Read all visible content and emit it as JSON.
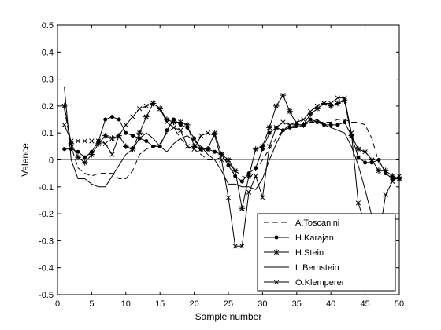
{
  "chart_data": {
    "type": "line",
    "title": "",
    "xlabel": "Sample number",
    "ylabel": "Valence",
    "xlim": [
      0,
      50
    ],
    "ylim": [
      -0.5,
      0.5
    ],
    "xticks": [
      0,
      5,
      10,
      15,
      20,
      25,
      30,
      35,
      40,
      45,
      50
    ],
    "yticks": [
      -0.5,
      -0.4,
      -0.3,
      -0.2,
      -0.1,
      0,
      0.1,
      0.2,
      0.3,
      0.4,
      0.5
    ],
    "xtick_labels": [
      "0",
      "5",
      "10",
      "15",
      "20",
      "25",
      "30",
      "35",
      "40",
      "45",
      "50"
    ],
    "ytick_labels": [
      "-0.5",
      "-0.4",
      "-0.3",
      "-0.2",
      "-0.1",
      "0",
      "0.1",
      "0.2",
      "0.3",
      "0.4",
      "0.5"
    ],
    "reference_line": {
      "y": 0,
      "color": "#999999"
    },
    "grid": false,
    "legend_position": "bottom-right",
    "x": [
      1,
      2,
      3,
      4,
      5,
      6,
      7,
      8,
      9,
      10,
      11,
      12,
      13,
      14,
      15,
      16,
      17,
      18,
      19,
      20,
      21,
      22,
      23,
      24,
      25,
      26,
      27,
      28,
      29,
      30,
      31,
      32,
      33,
      34,
      35,
      36,
      37,
      38,
      39,
      40,
      41,
      42,
      43,
      44,
      45,
      46,
      47,
      48,
      49,
      50
    ],
    "series": [
      {
        "name": "A.Toscanini",
        "style": "dashed",
        "marker": "none",
        "values": [
          0.19,
          0.05,
          -0.03,
          -0.05,
          -0.06,
          -0.05,
          -0.05,
          -0.05,
          -0.07,
          -0.07,
          -0.04,
          0.02,
          0.04,
          0.05,
          0.06,
          0.1,
          0.12,
          0.08,
          0.05,
          0.04,
          0.02,
          0.0,
          0.0,
          0.01,
          -0.01,
          -0.04,
          -0.06,
          -0.07,
          -0.04,
          0.0,
          0.04,
          0.08,
          0.11,
          0.13,
          0.13,
          0.13,
          0.14,
          0.14,
          0.14,
          0.14,
          0.15,
          0.15,
          0.14,
          0.14,
          0.13,
          0.08,
          -0.01,
          -0.04,
          -0.06,
          -0.07
        ]
      },
      {
        "name": "H.Karajan",
        "style": "solid",
        "marker": "dot",
        "values": [
          0.04,
          0.04,
          0.03,
          0.01,
          0.03,
          0.07,
          0.15,
          0.16,
          0.15,
          0.1,
          0.09,
          0.08,
          0.07,
          0.05,
          0.05,
          0.11,
          0.15,
          0.13,
          0.12,
          0.08,
          0.04,
          0.04,
          0.03,
          0.02,
          -0.02,
          -0.06,
          -0.08,
          -0.05,
          -0.03,
          0.04,
          0.1,
          0.12,
          0.11,
          0.12,
          0.13,
          0.13,
          0.15,
          0.14,
          0.13,
          0.13,
          0.13,
          0.14,
          0.09,
          0.01,
          -0.01,
          -0.01,
          0.0,
          -0.05,
          -0.07,
          -0.07
        ]
      },
      {
        "name": "H.Stein",
        "style": "solid",
        "marker": "asterisk",
        "values": [
          0.2,
          0.06,
          0.01,
          -0.01,
          0.02,
          0.06,
          0.09,
          0.08,
          0.09,
          0.05,
          0.04,
          0.1,
          0.16,
          0.21,
          0.19,
          0.15,
          0.14,
          0.14,
          0.13,
          0.05,
          0.04,
          0.04,
          0.1,
          0.02,
          0.0,
          -0.04,
          -0.18,
          -0.06,
          0.04,
          0.05,
          0.12,
          0.2,
          0.24,
          0.18,
          0.13,
          0.13,
          0.17,
          0.19,
          0.21,
          0.2,
          0.21,
          0.22,
          0.09,
          0.04,
          0.03,
          0.0,
          -0.04,
          -0.04,
          -0.06,
          -0.07
        ]
      },
      {
        "name": "L.Bernstein",
        "style": "solid",
        "marker": "none",
        "values": [
          0.27,
          0.0,
          -0.07,
          -0.07,
          -0.09,
          -0.1,
          -0.1,
          -0.06,
          -0.02,
          0.02,
          0.04,
          0.08,
          0.1,
          0.08,
          0.05,
          0.03,
          0.06,
          0.08,
          0.09,
          0.07,
          0.05,
          0.02,
          0.0,
          -0.04,
          -0.09,
          -0.09,
          -0.1,
          -0.1,
          -0.11,
          -0.07,
          0.0,
          0.06,
          0.11,
          0.12,
          0.12,
          0.13,
          0.14,
          0.15,
          0.13,
          0.12,
          0.11,
          0.1,
          0.05,
          -0.02,
          -0.11,
          -0.21,
          -0.27,
          -0.23,
          -0.22,
          -0.22
        ]
      },
      {
        "name": "O.Klemperer",
        "style": "solid",
        "marker": "x",
        "values": [
          0.13,
          0.07,
          0.07,
          0.07,
          0.07,
          0.07,
          0.06,
          0.02,
          0.09,
          0.13,
          0.16,
          0.19,
          0.2,
          0.21,
          0.19,
          0.14,
          0.12,
          0.11,
          0.05,
          0.04,
          0.09,
          0.1,
          0.09,
          0.0,
          -0.14,
          -0.32,
          -0.32,
          -0.12,
          -0.06,
          -0.14,
          0.05,
          0.12,
          0.14,
          0.13,
          0.14,
          0.15,
          0.18,
          0.2,
          0.21,
          0.21,
          0.23,
          0.23,
          0.1,
          -0.16,
          -0.24,
          -0.27,
          -0.29,
          -0.13,
          -0.08,
          -0.06
        ]
      }
    ]
  }
}
